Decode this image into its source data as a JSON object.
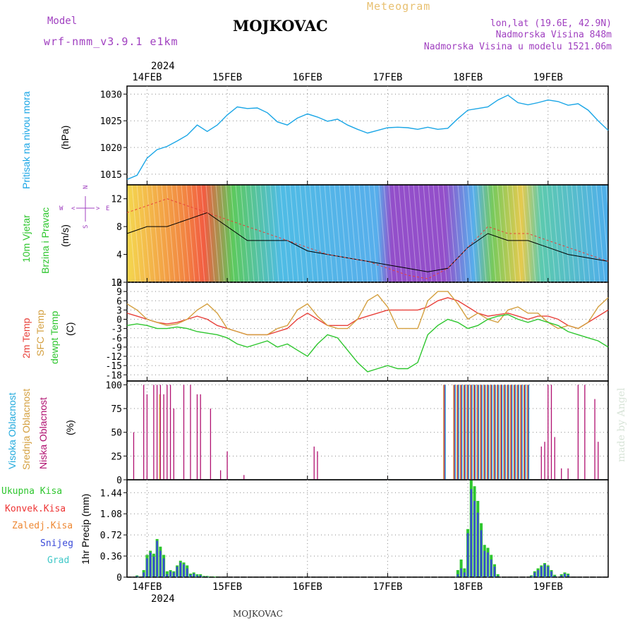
{
  "header": {
    "title": "MOJKOVAC",
    "subtitle": "Meteogram",
    "model_label": "Model",
    "model_name": "wrf-nmm_v3.9.1 e1km",
    "coords": "lon,lat (19.6E, 42.9N)",
    "elev": "Nadmorska Visina 848m",
    "model_elev": "Nadmorska Visina u modelu 1521.06m",
    "year_top": "2024",
    "year_bottom": "2024",
    "footer": "MOJKOVAC",
    "watermark": "made by Angel"
  },
  "colors": {
    "pressure": "#1aa6e6",
    "temp2m": "#e8403a",
    "sfctemp": "#d4a040",
    "dewpt": "#2ec62e",
    "wind_black": "#000000",
    "wind_red": "#e8403a",
    "cloud_high": "#22aadd",
    "cloud_mid": "#d4a040",
    "cloud_low": "#b01070",
    "precip_total": "#2ec62e",
    "precip_snow": "#3a4ad8",
    "precip_grad": "#40c8c8",
    "precip_conv": "#ee3333",
    "precip_froz": "#ee8833",
    "grid": "#888888",
    "label_purple": "#a040c0"
  },
  "chart_data": [
    {
      "type": "line",
      "id": "pressure",
      "ylabel": "(hPa)",
      "side_label": "Pritisak na nivou mora",
      "x_dates": [
        "14FEB",
        "15FEB",
        "16FEB",
        "17FEB",
        "18FEB",
        "19FEB"
      ],
      "yticks": [
        1015,
        1020,
        1025,
        1030
      ],
      "ylim": [
        1013,
        1031.5
      ],
      "x": [
        0,
        3,
        6,
        9,
        12,
        15,
        18,
        21,
        24,
        27,
        30,
        33,
        36,
        39,
        42,
        45,
        48,
        51,
        54,
        57,
        60,
        63,
        66,
        69,
        72,
        75,
        78,
        81,
        84,
        87,
        90,
        93,
        96,
        99,
        102,
        105,
        108,
        111,
        114,
        117,
        120,
        123,
        126,
        129,
        132,
        135,
        138,
        141,
        144
      ],
      "series": [
        {
          "name": "Pritisak",
          "values": [
            1014,
            1014.8,
            1018,
            1019.6,
            1020.2,
            1021.2,
            1022.3,
            1024.2,
            1023,
            1024.2,
            1026.1,
            1027.6,
            1027.3,
            1027.4,
            1026.5,
            1024.8,
            1024.2,
            1025.5,
            1026.3,
            1025.7,
            1024.9,
            1025.3,
            1024.2,
            1023.4,
            1022.7,
            1023.2,
            1023.7,
            1023.8,
            1023.7,
            1023.4,
            1023.8,
            1023.4,
            1023.6,
            1025.4,
            1027,
            1027.3,
            1027.6,
            1028.9,
            1029.8,
            1028.4,
            1028,
            1028.4,
            1028.9,
            1028.6,
            1027.9,
            1028.2,
            1027,
            1025,
            1023.2
          ]
        }
      ]
    },
    {
      "type": "line",
      "id": "wind",
      "ylabel": "(m/s)",
      "side_label_1": "10m Vjetar",
      "side_label_2": "Brzina i Pravac",
      "compass_n": "N",
      "compass_e": "E",
      "compass_w": "W",
      "compass_s": "S",
      "yticks": [
        0,
        4,
        8,
        12
      ],
      "ylim": [
        0,
        14
      ],
      "x": [
        0,
        6,
        12,
        18,
        24,
        30,
        36,
        42,
        48,
        54,
        60,
        66,
        72,
        78,
        84,
        90,
        96,
        102,
        108,
        114,
        120,
        126,
        132,
        138,
        144
      ],
      "series": [
        {
          "name": "Brzina",
          "values": [
            7,
            8,
            8,
            9,
            10,
            8,
            6,
            6,
            6,
            4.5,
            4,
            3.5,
            3,
            2.5,
            2,
            1.5,
            2,
            5,
            7,
            6,
            6,
            5,
            4,
            3.5,
            3
          ]
        },
        {
          "name": "Udari",
          "values": [
            10,
            11,
            12,
            11,
            10,
            9,
            8,
            7,
            6,
            5,
            4,
            3.5,
            3,
            2,
            1,
            0.5,
            2,
            5,
            8,
            7,
            7,
            6,
            5,
            4,
            3
          ]
        }
      ]
    },
    {
      "type": "line",
      "id": "temp",
      "ylabel": "(C)",
      "side_label_1": "2m Temp",
      "side_label_2": "SFC Temp",
      "side_label_3": "dewpt Temp",
      "yticks": [
        -18,
        -15,
        -12,
        -9,
        -6,
        -3,
        0,
        3,
        6,
        9,
        12
      ],
      "ylim": [
        -20,
        12
      ],
      "x": [
        0,
        3,
        6,
        9,
        12,
        15,
        18,
        21,
        24,
        27,
        30,
        33,
        36,
        39,
        42,
        45,
        48,
        51,
        54,
        57,
        60,
        63,
        66,
        69,
        72,
        75,
        78,
        81,
        84,
        87,
        90,
        93,
        96,
        99,
        102,
        105,
        108,
        111,
        114,
        117,
        120,
        123,
        126,
        129,
        132,
        135,
        138,
        141,
        144
      ],
      "series": [
        {
          "name": "2m Temp",
          "values": [
            2,
            1,
            0,
            -1,
            -1.5,
            -1,
            0,
            1,
            0,
            -2,
            -3,
            -4,
            -5,
            -5,
            -5,
            -4,
            -3,
            0,
            2,
            0,
            -2,
            -2,
            -2,
            0,
            1,
            2,
            3,
            3,
            3,
            3,
            4,
            6,
            7,
            6,
            4,
            2,
            1,
            1.5,
            2,
            1,
            0,
            1,
            1,
            0,
            -2,
            -3,
            -1,
            1,
            3
          ]
        },
        {
          "name": "SFC Temp",
          "values": [
            5,
            3,
            0,
            -1,
            -2,
            -1.5,
            0,
            3,
            5,
            2,
            -3,
            -4,
            -5,
            -5,
            -5,
            -3,
            -2,
            3,
            5,
            1,
            -2,
            -3,
            -3,
            0,
            6,
            8,
            4,
            -3,
            -3,
            -3,
            6,
            9,
            9,
            5,
            0,
            2,
            0,
            -1,
            3,
            4,
            2,
            2,
            -1,
            -3,
            -2,
            -3,
            -1,
            4,
            7
          ]
        },
        {
          "name": "dewpt Temp",
          "values": [
            -2,
            -1.5,
            -2,
            -3,
            -3,
            -2.5,
            -3,
            -4,
            -4.5,
            -5,
            -6,
            -8,
            -9,
            -8,
            -7,
            -9,
            -8,
            -10,
            -12,
            -8,
            -5,
            -6,
            -10,
            -14,
            -17,
            -16,
            -15,
            -16,
            -16,
            -14,
            -5,
            -2,
            0,
            -1,
            -3,
            -2,
            0,
            1,
            1.5,
            0,
            -1,
            0,
            -1,
            -2,
            -4,
            -5,
            -6,
            -7,
            -9
          ]
        }
      ]
    },
    {
      "type": "bar",
      "id": "clouds",
      "ylabel": "(%)",
      "side_label_1": "Visoka Oblacnost",
      "side_label_2": "Srednja Oblacnost",
      "side_label_3": "Niska Oblacnost",
      "yticks": [
        0,
        25,
        50,
        75,
        100
      ],
      "ylim": [
        0,
        104
      ],
      "x": [
        2,
        5,
        6,
        8,
        9,
        10,
        11,
        12,
        13,
        14,
        17,
        19,
        21,
        22,
        25,
        28,
        30,
        35,
        56,
        57,
        95,
        98,
        99,
        100,
        101,
        102,
        103,
        104,
        105,
        106,
        107,
        108,
        109,
        110,
        111,
        112,
        113,
        114,
        115,
        116,
        117,
        118,
        119,
        120,
        124,
        125,
        126,
        127,
        128,
        130,
        132,
        135,
        137,
        140,
        141
      ],
      "series": [
        {
          "name": "Niska Oblacnost",
          "values": [
            50,
            100,
            90,
            100,
            100,
            100,
            90,
            100,
            100,
            75,
            100,
            100,
            90,
            90,
            75,
            10,
            30,
            5,
            35,
            30,
            100,
            100,
            100,
            100,
            100,
            100,
            100,
            100,
            100,
            100,
            100,
            100,
            100,
            100,
            100,
            100,
            100,
            100,
            100,
            100,
            100,
            100,
            100,
            100,
            35,
            40,
            100,
            100,
            45,
            12,
            12,
            100,
            100,
            85,
            40
          ]
        },
        {
          "name": "Srednja Oblacnost",
          "values": [
            0,
            0,
            0,
            0,
            0,
            90,
            0,
            0,
            0,
            0,
            0,
            0,
            0,
            0,
            0,
            0,
            0,
            0,
            0,
            0,
            100,
            100,
            100,
            100,
            100,
            100,
            100,
            100,
            100,
            100,
            100,
            100,
            100,
            100,
            100,
            100,
            100,
            100,
            100,
            100,
            100,
            100,
            100,
            100,
            0,
            0,
            0,
            0,
            0,
            0,
            0,
            0,
            0,
            0,
            0
          ]
        },
        {
          "name": "Visoka Oblacnost",
          "values": [
            0,
            0,
            0,
            0,
            0,
            0,
            0,
            0,
            0,
            0,
            0,
            0,
            0,
            0,
            0,
            0,
            0,
            0,
            0,
            0,
            100,
            100,
            100,
            100,
            100,
            100,
            100,
            100,
            100,
            100,
            100,
            100,
            100,
            100,
            100,
            100,
            100,
            100,
            100,
            100,
            100,
            100,
            100,
            100,
            0,
            0,
            0,
            0,
            0,
            0,
            0,
            0,
            0,
            0,
            0
          ]
        }
      ]
    },
    {
      "type": "bar",
      "id": "precip",
      "ylabel": "1hr Precip (mm)",
      "side_label_1": "Ukupna Kisa",
      "side_label_2": "Konvek.Kisa",
      "side_label_3": "Zaledj.Kisa",
      "side_label_4": "Snijeg",
      "side_label_5": "Grad",
      "x_dates": [
        "14FEB",
        "15FEB",
        "16FEB",
        "17FEB",
        "18FEB",
        "19FEB"
      ],
      "yticks": [
        0,
        0.36,
        0.72,
        1.08,
        1.44
      ],
      "ylim": [
        0,
        1.66
      ],
      "x": [
        3,
        5,
        6,
        7,
        8,
        9,
        10,
        11,
        12,
        13,
        14,
        15,
        16,
        17,
        18,
        19,
        20,
        21,
        22,
        23,
        24,
        25,
        26,
        27,
        99,
        100,
        101,
        102,
        103,
        104,
        105,
        106,
        107,
        108,
        109,
        110,
        111,
        121,
        122,
        123,
        124,
        125,
        126,
        127,
        128,
        130,
        131,
        132
      ],
      "series": [
        {
          "name": "Ukupna Kisa",
          "values": [
            0.03,
            0.12,
            0.38,
            0.45,
            0.4,
            0.65,
            0.52,
            0.38,
            0.1,
            0.12,
            0.1,
            0.2,
            0.28,
            0.25,
            0.2,
            0.06,
            0.08,
            0.05,
            0.05,
            0.02,
            0.02,
            0.01,
            0.01,
            0.01,
            0.12,
            0.3,
            0.15,
            0.82,
            1.65,
            1.55,
            1.3,
            0.92,
            0.55,
            0.5,
            0.38,
            0.22,
            0.05,
            0.03,
            0.1,
            0.15,
            0.2,
            0.24,
            0.2,
            0.12,
            0.04,
            0.05,
            0.08,
            0.06
          ]
        },
        {
          "name": "Snijeg",
          "values": [
            0.02,
            0.08,
            0.32,
            0.42,
            0.35,
            0.62,
            0.45,
            0.32,
            0.05,
            0.1,
            0.08,
            0.18,
            0.25,
            0.22,
            0.15,
            0.04,
            0.06,
            0.03,
            0.03,
            0.01,
            0.01,
            0,
            0,
            0,
            0.05,
            0.15,
            0.08,
            0.75,
            1.5,
            1.3,
            1.1,
            0.8,
            0.45,
            0.42,
            0.3,
            0.18,
            0.02,
            0.02,
            0.08,
            0.12,
            0.18,
            0.22,
            0.18,
            0.1,
            0.02,
            0.03,
            0.06,
            0.04
          ]
        }
      ]
    }
  ]
}
